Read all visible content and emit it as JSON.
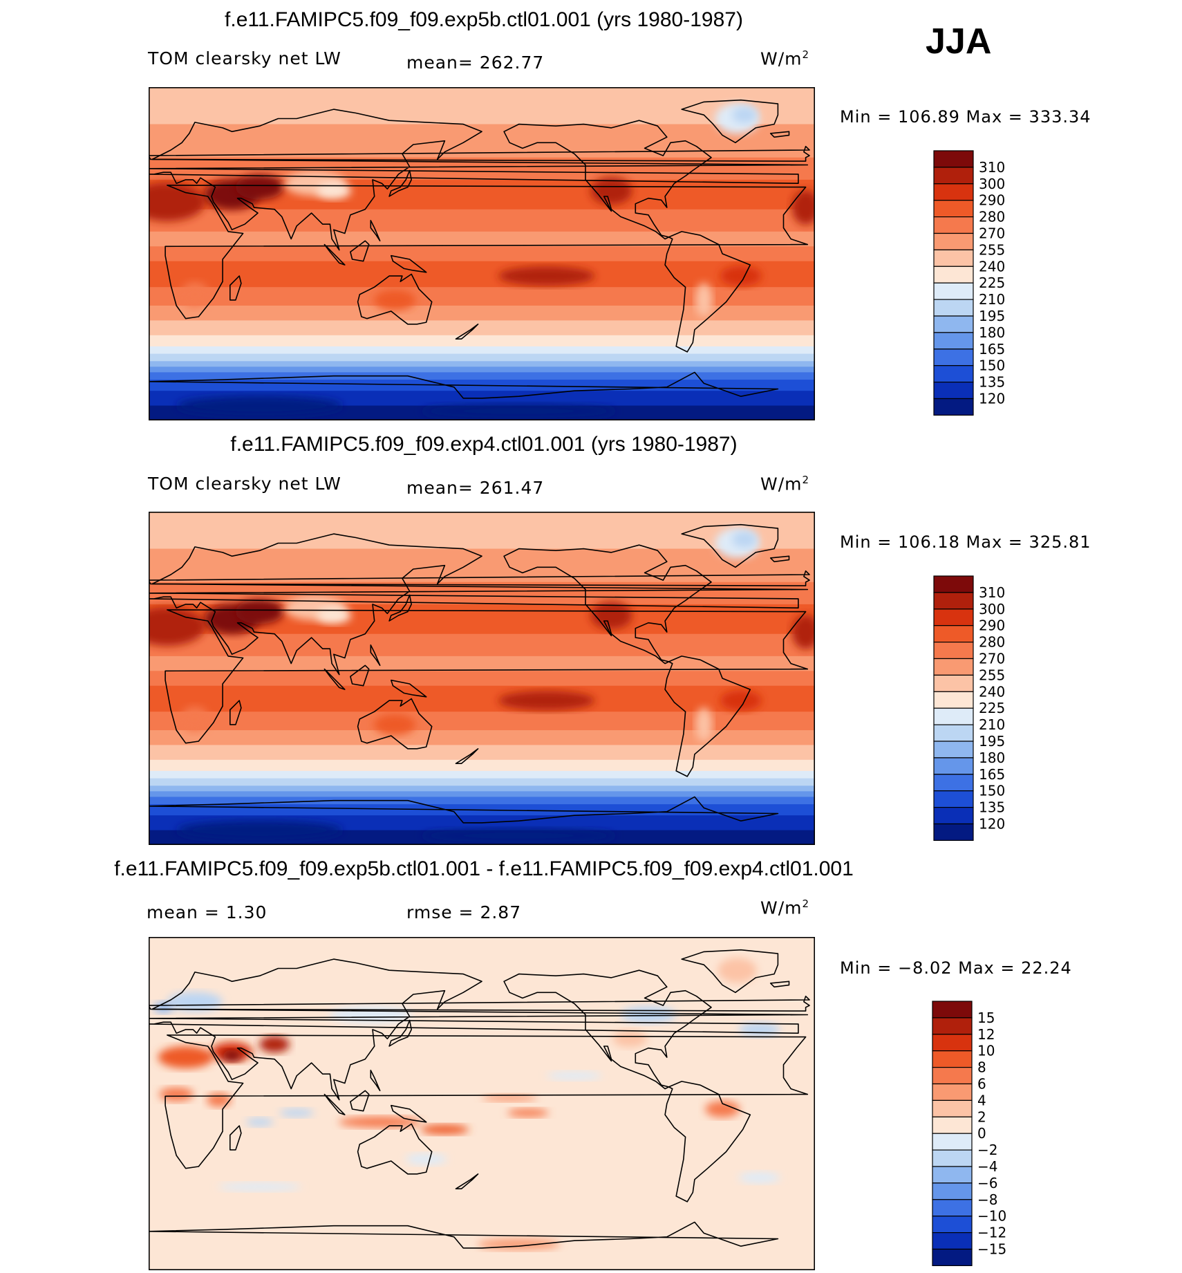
{
  "season": "JJA",
  "panels": [
    {
      "title": "f.e11.FAMIPC5.f09_f09.exp5b.ctl01.001 (yrs 1980-1987)",
      "left_label": "TOM clearsky net LW",
      "center_label": "mean=  262.77",
      "units": "W/m",
      "units_sup": "2",
      "minmax": "Min  =  106.89  Max  =  333.34",
      "colorbar": {
        "labels": [
          "310",
          "300",
          "290",
          "280",
          "270",
          "255",
          "240",
          "225",
          "210",
          "195",
          "180",
          "165",
          "150",
          "135",
          "120"
        ],
        "colors": [
          "#7d0a0a",
          "#b0200c",
          "#d8330f",
          "#ee5a28",
          "#f5794d",
          "#f99a72",
          "#fcc3a6",
          "#fde6d5",
          "#deebf8",
          "#bcd6f3",
          "#8fb7ef",
          "#6596ea",
          "#3d71e4",
          "#1d4fd6",
          "#0a2fb7",
          "#031a82"
        ]
      }
    },
    {
      "title": "f.e11.FAMIPC5.f09_f09.exp4.ctl01.001 (yrs 1980-1987)",
      "left_label": "TOM clearsky net LW",
      "center_label": "mean=  261.47",
      "units": "W/m",
      "units_sup": "2",
      "minmax": "Min  =  106.18  Max  =  325.81",
      "colorbar": {
        "labels": [
          "310",
          "300",
          "290",
          "280",
          "270",
          "255",
          "240",
          "225",
          "210",
          "195",
          "180",
          "165",
          "150",
          "135",
          "120"
        ],
        "colors": [
          "#7d0a0a",
          "#b0200c",
          "#d8330f",
          "#ee5a28",
          "#f5794d",
          "#f99a72",
          "#fcc3a6",
          "#fde6d5",
          "#deebf8",
          "#bcd6f3",
          "#8fb7ef",
          "#6596ea",
          "#3d71e4",
          "#1d4fd6",
          "#0a2fb7",
          "#031a82"
        ]
      }
    },
    {
      "title": "f.e11.FAMIPC5.f09_f09.exp5b.ctl01.001 - f.e11.FAMIPC5.f09_f09.exp4.ctl01.001",
      "left_label": "mean  =     1.30",
      "center_label": "rmse  =     2.87",
      "units": "W/m",
      "units_sup": "2",
      "minmax": "Min  =   −8.02  Max  =    22.24",
      "colorbar": {
        "labels": [
          "15",
          "12",
          "10",
          "8",
          "6",
          "4",
          "2",
          "0",
          "−2",
          "−4",
          "−6",
          "−8",
          "−10",
          "−12",
          "−15"
        ],
        "colors": [
          "#7d0a0a",
          "#b0200c",
          "#d8330f",
          "#ee5a28",
          "#f5794d",
          "#f99a72",
          "#fcc3a6",
          "#fde6d5",
          "#deebf8",
          "#bcd6f3",
          "#8fb7ef",
          "#6596ea",
          "#3d71e4",
          "#1d4fd6",
          "#0a2fb7",
          "#031a82"
        ]
      }
    }
  ],
  "chart_data": [
    {
      "type": "heatmap",
      "title": "f.e11.FAMIPC5.f09_f09.exp5b.ctl01.001 (yrs 1980-1987)",
      "subtitle": "TOM clearsky net LW",
      "mean": 262.77,
      "min": 106.89,
      "max": 333.34,
      "units": "W/m2",
      "contour_levels": [
        120,
        135,
        150,
        165,
        180,
        195,
        210,
        225,
        240,
        255,
        270,
        280,
        290,
        300,
        310
      ],
      "zonal_bands_lat": [
        80,
        60,
        40,
        25,
        10,
        0,
        -10,
        -25,
        -40,
        -55,
        -65,
        -75,
        -90
      ],
      "zonal_values": [
        245,
        255,
        270,
        285,
        280,
        265,
        285,
        275,
        250,
        215,
        160,
        130,
        115
      ]
    },
    {
      "type": "heatmap",
      "title": "f.e11.FAMIPC5.f09_f09.exp4.ctl01.001 (yrs 1980-1987)",
      "subtitle": "TOM clearsky net LW",
      "mean": 261.47,
      "min": 106.18,
      "max": 325.81,
      "units": "W/m2",
      "contour_levels": [
        120,
        135,
        150,
        165,
        180,
        195,
        210,
        225,
        240,
        255,
        270,
        280,
        290,
        300,
        310
      ],
      "zonal_bands_lat": [
        80,
        60,
        40,
        25,
        10,
        0,
        -10,
        -25,
        -40,
        -55,
        -65,
        -75,
        -90
      ],
      "zonal_values": [
        245,
        255,
        268,
        282,
        278,
        263,
        283,
        273,
        248,
        213,
        158,
        128,
        113
      ]
    },
    {
      "type": "heatmap",
      "title": "f.e11.FAMIPC5.f09_f09.exp5b.ctl01.001 - f.e11.FAMIPC5.f09_f09.exp4.ctl01.001",
      "mean": 1.3,
      "rmse": 2.87,
      "min": -8.02,
      "max": 22.24,
      "units": "W/m2",
      "contour_levels": [
        -15,
        -12,
        -10,
        -8,
        -6,
        -4,
        -2,
        0,
        2,
        4,
        6,
        8,
        10,
        12,
        15
      ]
    }
  ]
}
